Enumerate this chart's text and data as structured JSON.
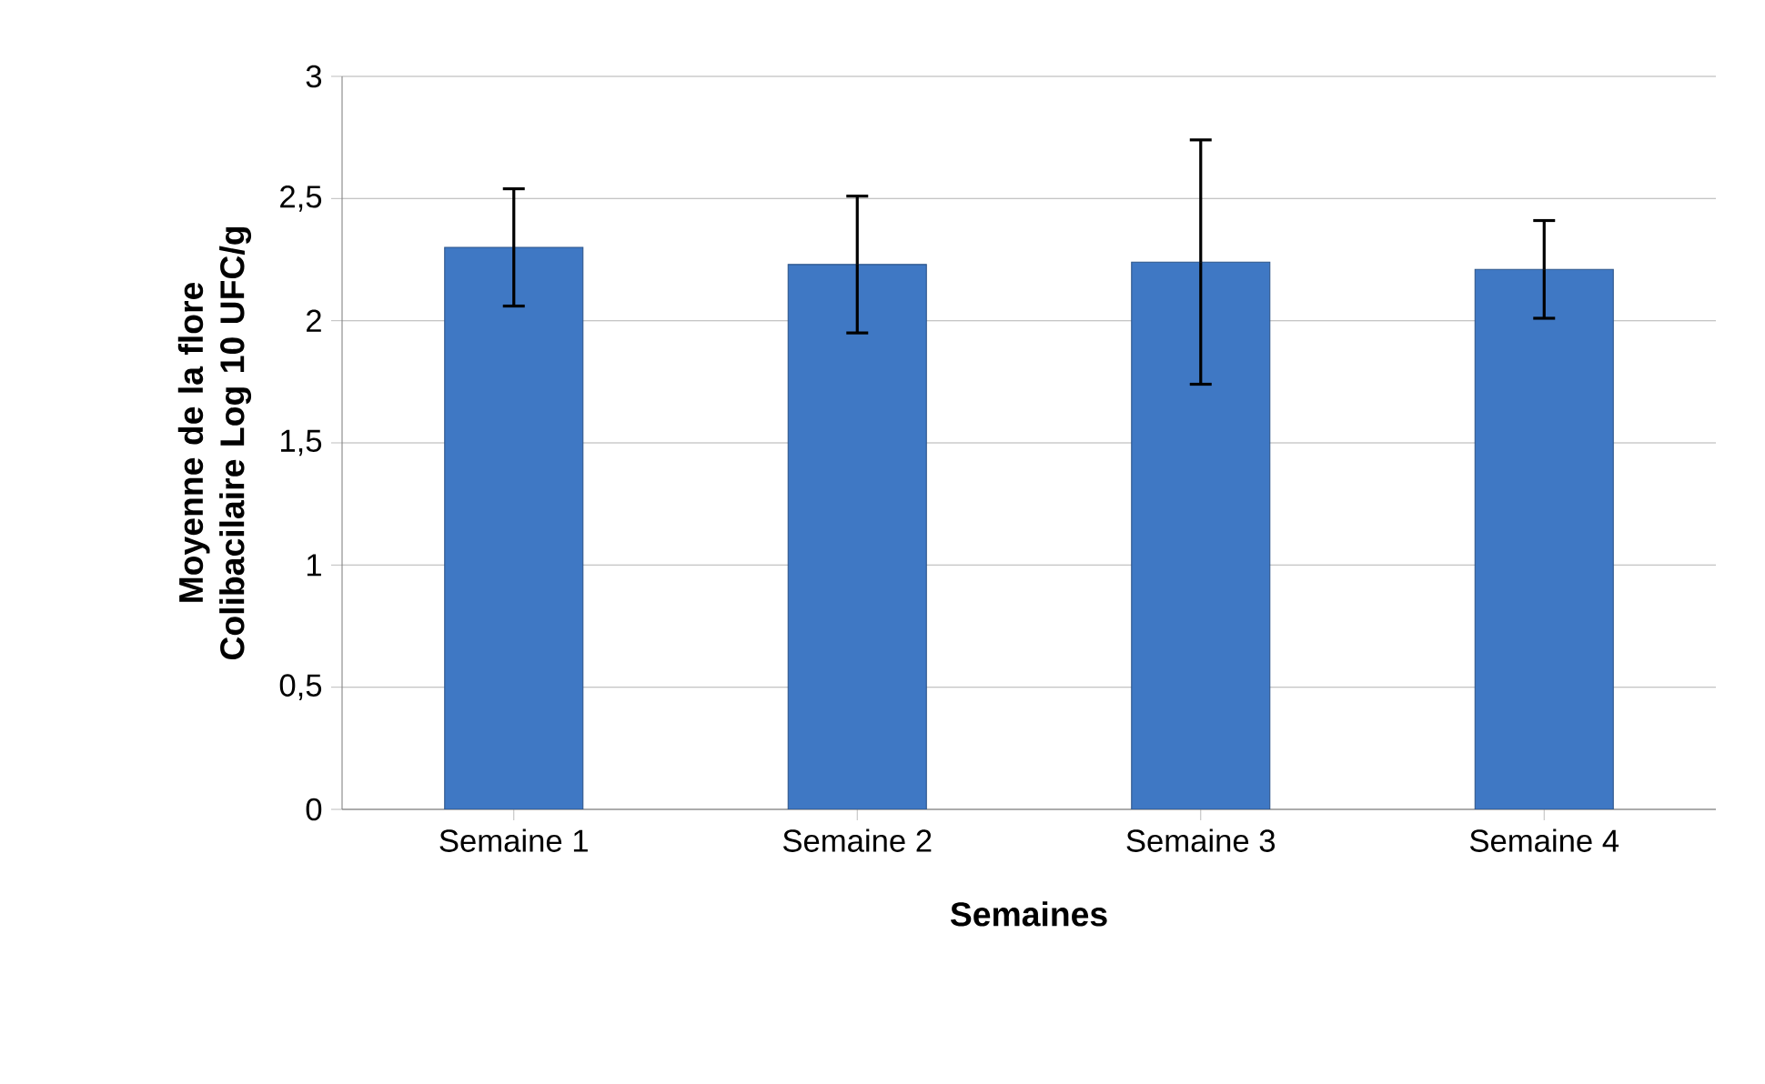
{
  "chart_data": {
    "type": "bar",
    "xlabel": "Semaines",
    "ylabel": "Moyenne de la flore Colibacilaire Log 10 UFC/g",
    "categories": [
      "Semaine 1",
      "Semaine 2",
      "Semaine 3",
      "Semaine 4"
    ],
    "values": [
      2.3,
      2.23,
      2.24,
      2.21
    ],
    "errors": [
      0.24,
      0.28,
      0.5,
      0.2
    ],
    "color": "#3f78c4",
    "ylim": [
      0,
      3
    ],
    "yticks": [
      0,
      {
        "value": 0.5,
        "label": "0,5"
      },
      1,
      {
        "value": 1.5,
        "label": "1,5"
      },
      2,
      {
        "value": 2.5,
        "label": "2,5"
      },
      3
    ],
    "grid": "y"
  }
}
